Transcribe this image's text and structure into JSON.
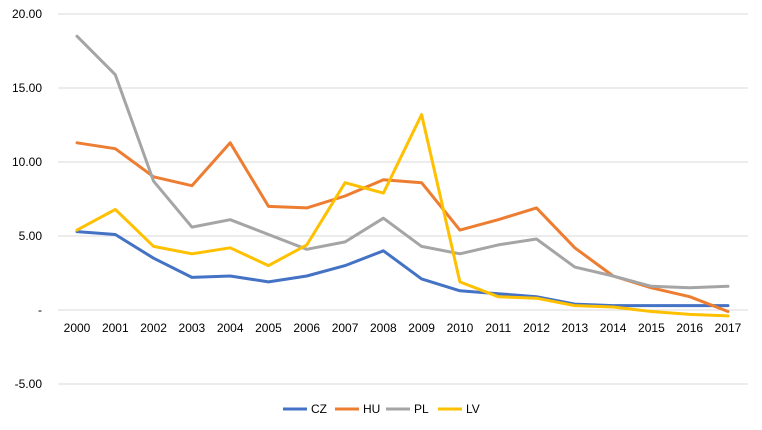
{
  "chart_data": {
    "type": "line",
    "title": "",
    "xlabel": "",
    "ylabel": "",
    "ylim": [
      -5,
      20
    ],
    "y_ticks": [
      {
        "value": -5,
        "label": "-5.00"
      },
      {
        "value": 0,
        "label": "-"
      },
      {
        "value": 5,
        "label": "5.00"
      },
      {
        "value": 10,
        "label": "10.00"
      },
      {
        "value": 15,
        "label": "15.00"
      },
      {
        "value": 20,
        "label": "20.00"
      }
    ],
    "categories": [
      "2000",
      "2001",
      "2002",
      "2003",
      "2004",
      "2005",
      "2006",
      "2007",
      "2008",
      "2009",
      "2010",
      "2011",
      "2012",
      "2013",
      "2014",
      "2015",
      "2016",
      "2017"
    ],
    "grid": true,
    "legend_position": "bottom",
    "series": [
      {
        "name": "CZ",
        "color": "#4472C4",
        "values": [
          5.3,
          5.1,
          3.5,
          2.2,
          2.3,
          1.9,
          2.3,
          3.0,
          4.0,
          2.1,
          1.3,
          1.1,
          0.9,
          0.4,
          0.3,
          0.3,
          0.3,
          0.3
        ]
      },
      {
        "name": "HU",
        "color": "#ED7D31",
        "values": [
          11.3,
          10.9,
          9.0,
          8.4,
          11.3,
          7.0,
          6.9,
          7.7,
          8.8,
          8.6,
          5.4,
          6.1,
          6.9,
          4.2,
          2.3,
          1.5,
          0.9,
          -0.1
        ]
      },
      {
        "name": "PL",
        "color": "#A5A5A5",
        "values": [
          18.5,
          15.9,
          8.7,
          5.6,
          6.1,
          5.1,
          4.1,
          4.6,
          6.2,
          4.3,
          3.8,
          4.4,
          4.8,
          2.9,
          2.3,
          1.6,
          1.5,
          1.6
        ]
      },
      {
        "name": "LV",
        "color": "#FFC000",
        "values": [
          5.4,
          6.8,
          4.3,
          3.8,
          4.2,
          3.0,
          4.4,
          8.6,
          7.9,
          13.2,
          1.9,
          0.9,
          0.8,
          0.3,
          0.2,
          -0.1,
          -0.3,
          -0.4
        ]
      }
    ]
  }
}
